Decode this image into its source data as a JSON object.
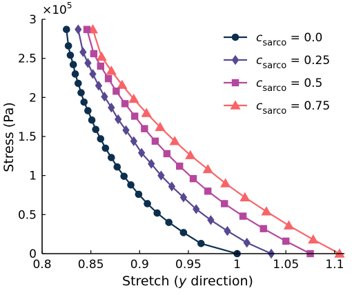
{
  "chart_data": {
    "type": "line",
    "xlabel_prefix": "Stretch (",
    "xlabel_var": "y",
    "xlabel_suffix": " direction)",
    "ylabel": "Stress (Pa)",
    "y_multiplier_base": "×10",
    "y_multiplier_exp": "5",
    "xlim": [
      0.8,
      1.11
    ],
    "ylim": [
      0,
      3
    ],
    "x_ticks": [
      0.8,
      0.85,
      0.9,
      0.95,
      1,
      1.05,
      1.1
    ],
    "x_tick_labels": [
      "0.8",
      "0.85",
      "0.9",
      "0.95",
      "1",
      "1.05",
      "1.1"
    ],
    "y_ticks": [
      0,
      0.5,
      1,
      1.5,
      2,
      2.5,
      3
    ],
    "y_tick_labels": [
      "0",
      "0.5",
      "1",
      "1.5",
      "2",
      "2.5",
      "3"
    ],
    "grid": false,
    "legend_position": "top-right",
    "series": [
      {
        "name_var": "c",
        "name_sub": "sarco",
        "name_value": " = 0.0",
        "color": "#0d2f4f",
        "marker": "circle",
        "x": [
          1.0,
          0.963,
          0.945,
          0.93,
          0.918,
          0.908,
          0.899,
          0.891,
          0.884,
          0.877,
          0.871,
          0.865,
          0.86,
          0.855,
          0.851,
          0.847,
          0.843,
          0.84,
          0.837,
          0.834,
          0.832,
          0.829,
          0.827,
          0.825
        ],
        "y": [
          0,
          0.13,
          0.27,
          0.4,
          0.52,
          0.64,
          0.76,
          0.88,
          0.99,
          1.11,
          1.23,
          1.35,
          1.47,
          1.59,
          1.71,
          1.83,
          1.94,
          2.06,
          2.18,
          2.3,
          2.42,
          2.54,
          2.66,
          2.87
        ]
      },
      {
        "name_var": "c",
        "name_sub": "sarco",
        "name_value": " = 0.25",
        "color": "#584892",
        "marker": "diamond",
        "x": [
          1.035,
          1.01,
          0.99,
          0.973,
          0.958,
          0.945,
          0.933,
          0.922,
          0.912,
          0.902,
          0.894,
          0.886,
          0.878,
          0.871,
          0.864,
          0.858,
          0.852,
          0.847,
          0.842,
          0.837
        ],
        "y": [
          0,
          0.14,
          0.29,
          0.43,
          0.57,
          0.72,
          0.86,
          1.0,
          1.15,
          1.29,
          1.44,
          1.58,
          1.72,
          1.87,
          2.01,
          2.15,
          2.3,
          2.44,
          2.58,
          2.87
        ]
      },
      {
        "name_var": "c",
        "name_sub": "sarco",
        "name_value": " = 0.5",
        "color": "#b5479d",
        "marker": "square",
        "x": [
          1.075,
          1.05,
          1.027,
          1.006,
          0.987,
          0.97,
          0.955,
          0.941,
          0.928,
          0.916,
          0.905,
          0.895,
          0.885,
          0.876,
          0.868,
          0.86,
          0.853,
          0.846
        ],
        "y": [
          0,
          0.16,
          0.32,
          0.48,
          0.64,
          0.8,
          0.96,
          1.12,
          1.28,
          1.44,
          1.6,
          1.76,
          1.92,
          2.08,
          2.24,
          2.4,
          2.56,
          2.87
        ]
      },
      {
        "name_var": "c",
        "name_sub": "sarco",
        "name_value": " = 0.75",
        "color": "#f86467",
        "marker": "triangle",
        "x": [
          1.105,
          1.078,
          1.053,
          1.03,
          1.008,
          0.988,
          0.97,
          0.952,
          0.936,
          0.921,
          0.907,
          0.894,
          0.882,
          0.871,
          0.861,
          0.852
        ],
        "y": [
          0,
          0.18,
          0.36,
          0.54,
          0.72,
          0.9,
          1.08,
          1.26,
          1.44,
          1.62,
          1.8,
          1.98,
          2.16,
          2.34,
          2.52,
          2.87
        ]
      }
    ]
  }
}
